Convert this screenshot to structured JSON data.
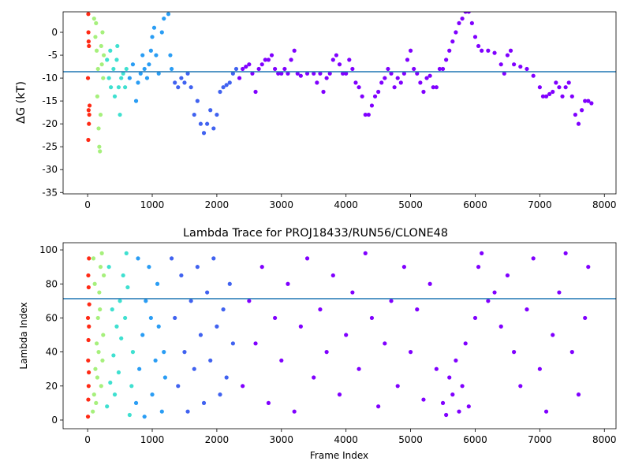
{
  "chart_data": [
    {
      "type": "scatter",
      "ylabel": "ΔG (kT)",
      "xlim": [
        -380,
        8180
      ],
      "ylim": [
        -35.3,
        4.48
      ],
      "xticks": [
        0,
        1000,
        2000,
        3000,
        4000,
        5000,
        6000,
        7000,
        8000
      ],
      "yticks": [
        -35,
        -30,
        -25,
        -20,
        -15,
        -10,
        -5,
        0
      ],
      "hline": -8.6,
      "hline_color": "#1f77b4",
      "series": [
        {
          "color": "#ff2a15",
          "x": [
            10,
            15,
            20,
            5,
            15,
            25,
            10,
            20,
            30,
            12
          ],
          "values": [
            4,
            -2,
            -3,
            -10,
            -17,
            -18,
            -23.5,
            -20,
            -16,
            0
          ]
        },
        {
          "color": "#a6f07c",
          "x": [
            100,
            120,
            140,
            160,
            150,
            170,
            180,
            190,
            200,
            130,
            210,
            220,
            240,
            230,
            250
          ],
          "values": [
            3,
            -1,
            -4,
            -8,
            -14,
            -21,
            -25,
            -26,
            -18,
            2,
            -3,
            -7,
            -10,
            0,
            -5
          ]
        },
        {
          "color": "#3fe0d0",
          "x": [
            300,
            330,
            360,
            400,
            420,
            450,
            480,
            500,
            520,
            550,
            580,
            600,
            350,
            460
          ],
          "values": [
            -6,
            -10,
            -12,
            -8,
            -14,
            -6,
            -12,
            -18,
            -10,
            -9,
            -12,
            -8,
            -4,
            -3
          ]
        },
        {
          "color": "#2a9df4",
          "x": [
            650,
            700,
            750,
            780,
            820,
            850,
            880,
            920,
            950,
            980,
            1000,
            1030,
            1060,
            1100,
            1150,
            1180,
            1210,
            1250,
            1280,
            1300
          ],
          "values": [
            -10,
            -7,
            -15,
            -11,
            -9,
            -5,
            -8,
            -10,
            -7,
            -4,
            -1,
            1,
            -5,
            -9,
            0,
            3,
            5,
            4,
            -5,
            -8
          ]
        },
        {
          "color": "#4062f0",
          "x": [
            1350,
            1400,
            1450,
            1500,
            1550,
            1600,
            1650,
            1700,
            1750,
            1800,
            1850,
            1900,
            1950,
            2000,
            2050,
            2100,
            2150,
            2200,
            2250,
            2300
          ],
          "values": [
            -11,
            -12,
            -10,
            -11,
            -9,
            -12,
            -18,
            -15,
            -20,
            -22,
            -20,
            -17,
            -21,
            -18,
            -13,
            -12,
            -11.5,
            -11,
            -9,
            -8
          ]
        },
        {
          "color": "#8000ff",
          "x": [
            2350,
            2400,
            2450,
            2500,
            2550,
            2600,
            2650,
            2700,
            2750,
            2800,
            2850,
            2900,
            2950,
            3000,
            3050,
            3100,
            3150,
            3200,
            3250,
            3300,
            3400,
            3500,
            3550,
            3600,
            3650,
            3700,
            3750,
            3800,
            3850,
            3900,
            3950,
            4000,
            4050,
            4100,
            4150,
            4200,
            4250,
            4300,
            4350,
            4400,
            4450,
            4500,
            4550,
            4600,
            4650,
            4700,
            4750,
            4800,
            4850,
            4900,
            4950,
            5000,
            5050,
            5100,
            5150,
            5200,
            5250,
            5300,
            5350,
            5400,
            5450,
            5500,
            5550,
            5600,
            5650,
            5700,
            5750,
            5800,
            5850,
            5900,
            5950,
            6000,
            6050,
            6100,
            6200,
            6300,
            6400,
            6450,
            6500,
            6550,
            6600,
            6700,
            6800,
            6900,
            7000,
            7050,
            7100,
            7150,
            7200,
            7250,
            7300,
            7350,
            7400,
            7450,
            7500,
            7550,
            7600,
            7650,
            7700,
            7750,
            7800
          ],
          "values": [
            -10,
            -8,
            -7.5,
            -7,
            -9,
            -13,
            -8,
            -7,
            -6,
            -6,
            -5,
            -8,
            -9,
            -9,
            -8,
            -9,
            -6,
            -4,
            -9,
            -9.5,
            -9,
            -9,
            -11,
            -9,
            -13,
            -10,
            -9,
            -6,
            -5,
            -7,
            -9,
            -9,
            -6,
            -8,
            -11,
            -12,
            -14,
            -18,
            -18,
            -16,
            -14,
            -13,
            -11,
            -10,
            -8,
            -9,
            -12,
            -10,
            -11,
            -9,
            -6,
            -4,
            -8,
            -9,
            -11,
            -13,
            -10,
            -9.5,
            -12,
            -12,
            -8,
            -8,
            -6,
            -4,
            -2,
            0,
            2,
            3,
            4.5,
            4.5,
            2,
            -1,
            -3,
            -4,
            -4,
            -4.5,
            -7,
            -9,
            -5,
            -4,
            -7,
            -7.5,
            -8,
            -9.5,
            -12,
            -14,
            -14,
            -13.5,
            -13,
            -11,
            -12,
            -14,
            -12,
            -11,
            -14,
            -18,
            -20,
            -17,
            -15,
            -15,
            -15.5
          ]
        }
      ]
    },
    {
      "type": "scatter",
      "title": "Lambda Trace for PROJ18433/RUN56/CLONE48",
      "xlabel": "Frame Index",
      "ylabel": "Lambda Index",
      "xlim": [
        -380,
        8180
      ],
      "ylim": [
        -5.1,
        104.2
      ],
      "xticks": [
        0,
        1000,
        2000,
        3000,
        4000,
        5000,
        6000,
        7000,
        8000
      ],
      "yticks": [
        0,
        20,
        40,
        60,
        80,
        100
      ],
      "hline": 71.3,
      "hline_color": "#1f77b4",
      "series": [
        {
          "color": "#ff2a15",
          "x": [
            5,
            10,
            15,
            8,
            12,
            20,
            5,
            25,
            15,
            10,
            20,
            18
          ],
          "values": [
            2,
            12,
            20,
            35,
            47,
            55,
            60,
            68,
            78,
            85,
            95,
            28
          ]
        },
        {
          "color": "#a6f07c",
          "x": [
            80,
            100,
            120,
            140,
            160,
            180,
            200,
            220,
            240,
            110,
            130,
            150,
            170,
            190,
            210,
            230,
            250,
            90
          ],
          "values": [
            5,
            15,
            30,
            45,
            60,
            75,
            90,
            98,
            50,
            80,
            10,
            25,
            40,
            65,
            20,
            35,
            85,
            95
          ]
        },
        {
          "color": "#3fe0d0",
          "x": [
            300,
            350,
            400,
            450,
            500,
            550,
            600,
            650,
            700,
            330,
            380,
            420,
            480,
            520,
            580,
            620,
            680
          ],
          "values": [
            8,
            22,
            38,
            55,
            70,
            85,
            98,
            3,
            40,
            90,
            65,
            15,
            28,
            48,
            60,
            78,
            20
          ]
        },
        {
          "color": "#2a9df4",
          "x": [
            750,
            800,
            850,
            900,
            950,
            1000,
            1050,
            1100,
            1150,
            1200,
            780,
            880,
            980,
            1080,
            1180
          ],
          "values": [
            10,
            30,
            50,
            70,
            90,
            15,
            35,
            55,
            5,
            25,
            95,
            2,
            60,
            80,
            40
          ]
        },
        {
          "color": "#4062f0",
          "x": [
            1300,
            1350,
            1400,
            1450,
            1500,
            1550,
            1600,
            1650,
            1700,
            1750,
            1800,
            1850,
            1900,
            1950,
            2000,
            2050,
            2100,
            2150,
            2200,
            2250
          ],
          "values": [
            95,
            60,
            20,
            85,
            40,
            5,
            70,
            30,
            90,
            50,
            10,
            75,
            35,
            95,
            55,
            15,
            65,
            25,
            80,
            45
          ]
        },
        {
          "color": "#8000ff",
          "x": [
            2400,
            2500,
            2600,
            2700,
            2800,
            2900,
            3000,
            3100,
            3200,
            3300,
            3400,
            3500,
            3600,
            3700,
            3800,
            3900,
            4000,
            4100,
            4200,
            4300,
            4400,
            4500,
            4600,
            4700,
            4800,
            4900,
            5000,
            5100,
            5200,
            5300,
            5400,
            5500,
            5550,
            5600,
            5650,
            5700,
            5750,
            5800,
            5850,
            5900,
            6000,
            6050,
            6100,
            6200,
            6300,
            6400,
            6500,
            6600,
            6700,
            6800,
            6900,
            7000,
            7100,
            7200,
            7300,
            7400,
            7500,
            7600,
            7700,
            7750
          ],
          "values": [
            20,
            70,
            45,
            90,
            10,
            60,
            35,
            80,
            5,
            55,
            95,
            25,
            65,
            40,
            85,
            15,
            50,
            75,
            30,
            98,
            60,
            8,
            45,
            70,
            20,
            90,
            40,
            65,
            12,
            80,
            30,
            10,
            3,
            25,
            15,
            35,
            5,
            20,
            45,
            8,
            60,
            90,
            98,
            70,
            75,
            55,
            85,
            40,
            20,
            65,
            95,
            30,
            5,
            50,
            75,
            98,
            40,
            15,
            60,
            90
          ]
        }
      ]
    }
  ]
}
